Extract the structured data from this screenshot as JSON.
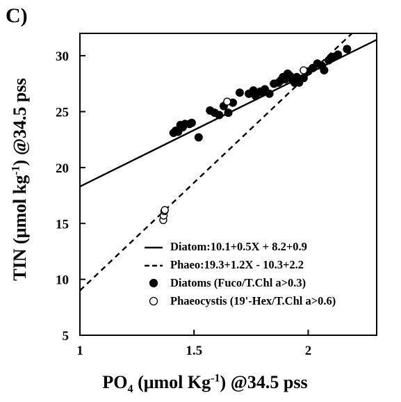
{
  "panel_label": "C)",
  "chart_data": {
    "type": "scatter",
    "title": "",
    "xlabel": {
      "pre": "PO",
      "sub": "4",
      "post": " (μmol Kg",
      "sup": "-1",
      "tail": ") @34.5 pss"
    },
    "ylabel": {
      "pre": "TIN (μmol kg",
      "sup": "-1",
      "tail": ") @34.5 pss"
    },
    "xlim": [
      1,
      2.3
    ],
    "ylim": [
      5,
      32
    ],
    "x_ticks": [
      1,
      1.5,
      2
    ],
    "x_tick_labels": [
      "1",
      "1.5",
      "2"
    ],
    "y_ticks": [
      5,
      10,
      15,
      20,
      25,
      30
    ],
    "y_tick_labels": [
      "5",
      "10",
      "15",
      "20",
      "25",
      "30"
    ],
    "lines": [
      {
        "name": "Diatom",
        "slope": 10.1,
        "intercept": 8.2,
        "style": "solid",
        "label": "Diatom:10.1+0.5X  + 8.2+0.9"
      },
      {
        "name": "Phaeo",
        "slope": 19.3,
        "intercept": -10.3,
        "style": "dashed",
        "label": "Phaeo:19.3+1.2X  - 10.3+2.2"
      }
    ],
    "series": [
      {
        "name": "Diatoms (Fuco/T.Chl a>0.3)",
        "marker": "filled-circle",
        "points": [
          [
            1.41,
            23.1
          ],
          [
            1.42,
            23.3
          ],
          [
            1.43,
            23.2
          ],
          [
            1.44,
            23.8
          ],
          [
            1.45,
            23.6
          ],
          [
            1.46,
            23.9
          ],
          [
            1.48,
            23.9
          ],
          [
            1.49,
            24.0
          ],
          [
            1.52,
            22.7
          ],
          [
            1.57,
            25.1
          ],
          [
            1.59,
            24.9
          ],
          [
            1.61,
            24.7
          ],
          [
            1.63,
            25.5
          ],
          [
            1.65,
            24.9
          ],
          [
            1.67,
            25.8
          ],
          [
            1.7,
            26.7
          ],
          [
            1.74,
            26.6
          ],
          [
            1.76,
            26.9
          ],
          [
            1.77,
            26.4
          ],
          [
            1.79,
            26.8
          ],
          [
            1.8,
            26.7
          ],
          [
            1.81,
            27.0
          ],
          [
            1.83,
            26.6
          ],
          [
            1.85,
            27.5
          ],
          [
            1.87,
            27.6
          ],
          [
            1.88,
            27.8
          ],
          [
            1.89,
            28.1
          ],
          [
            1.9,
            27.9
          ],
          [
            1.91,
            28.4
          ],
          [
            1.92,
            28.2
          ],
          [
            1.93,
            27.9
          ],
          [
            1.94,
            27.6
          ],
          [
            1.95,
            28.1
          ],
          [
            1.96,
            27.6
          ],
          [
            1.98,
            28.0
          ],
          [
            2.0,
            28.6
          ],
          [
            2.02,
            28.9
          ],
          [
            2.04,
            29.3
          ],
          [
            2.06,
            29.1
          ],
          [
            2.07,
            28.7
          ],
          [
            2.09,
            29.6
          ],
          [
            2.11,
            29.9
          ],
          [
            2.13,
            30.1
          ],
          [
            2.17,
            30.6
          ]
        ]
      },
      {
        "name": "Phaeocystis (19'-Hex/T.Chl a>0.6)",
        "marker": "open-circle",
        "points": [
          [
            1.365,
            15.3
          ],
          [
            1.367,
            15.7
          ],
          [
            1.37,
            16.1
          ],
          [
            1.372,
            16.2
          ],
          [
            1.645,
            25.9
          ],
          [
            1.98,
            28.7
          ]
        ]
      }
    ],
    "legend": {
      "placement": "bottom-right",
      "entries": [
        {
          "symbol": "solid-line",
          "text": "Diatom:10.1+0.5X  + 8.2+0.9"
        },
        {
          "symbol": "dashed-line",
          "text": "Phaeo:19.3+1.2X  - 10.3+2.2"
        },
        {
          "symbol": "filled-circle",
          "text": "Diatoms (Fuco/T.Chl a>0.3)"
        },
        {
          "symbol": "open-circle",
          "text": "Phaeocystis (19'-Hex/T.Chl a>0.6)"
        }
      ]
    },
    "grid": false
  }
}
